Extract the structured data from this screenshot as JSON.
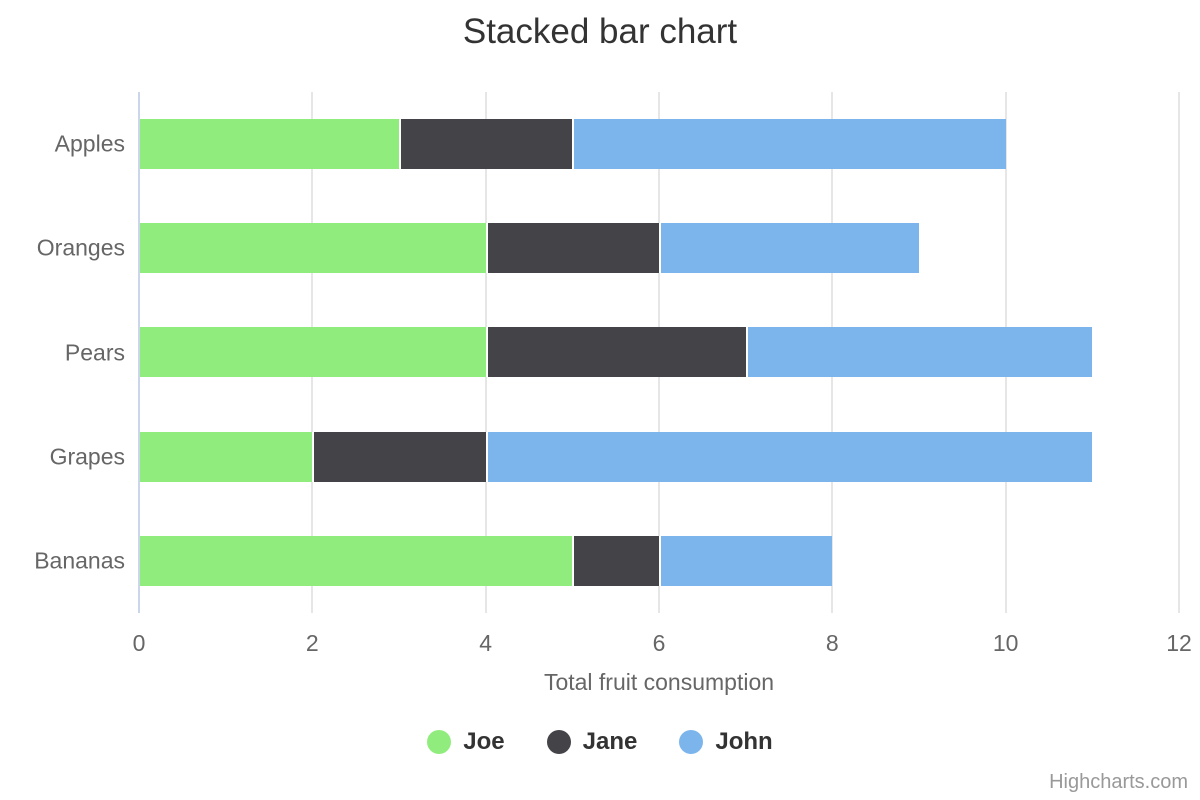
{
  "chart_data": {
    "type": "bar",
    "orientation": "horizontal",
    "stacked": true,
    "title": "Stacked bar chart",
    "categories": [
      "Apples",
      "Oranges",
      "Pears",
      "Grapes",
      "Bananas"
    ],
    "series": [
      {
        "name": "Joe",
        "color": "#90ed7d",
        "values": [
          3,
          4,
          4,
          2,
          5
        ]
      },
      {
        "name": "Jane",
        "color": "#434348",
        "values": [
          2,
          2,
          3,
          2,
          1
        ]
      },
      {
        "name": "John",
        "color": "#7cb5ec",
        "values": [
          5,
          3,
          4,
          7,
          2
        ]
      }
    ],
    "xlabel": "Total fruit consumption",
    "x_ticks": [
      0,
      2,
      4,
      6,
      8,
      10,
      12
    ],
    "xlim": [
      0,
      12
    ],
    "grid": true,
    "legend_position": "bottom"
  },
  "credits": {
    "label": "Highcharts.com"
  },
  "colors": {
    "background": "#ffffff",
    "title_text": "#333333",
    "axis_label_text": "#666666",
    "gridline": "#e6e6e6",
    "axis_line": "#ccd6eb",
    "legend_text": "#333333",
    "credits_text": "#999999",
    "segment_border": "#ffffff"
  }
}
